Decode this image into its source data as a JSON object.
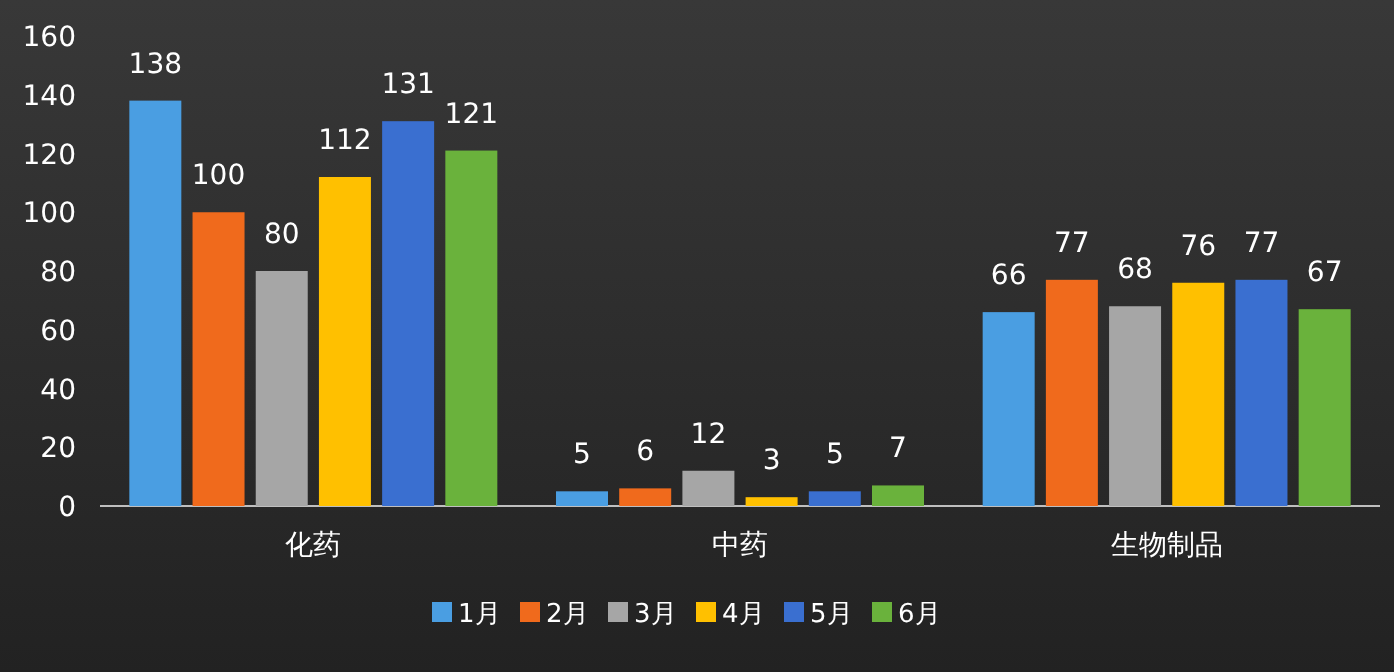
{
  "chart_data": {
    "type": "bar",
    "categories": [
      "化药",
      "中药",
      "生物制品"
    ],
    "series": [
      {
        "name": "1月",
        "color": "#4a9ee2",
        "values": [
          138,
          5,
          66
        ]
      },
      {
        "name": "2月",
        "color": "#f06a1c",
        "values": [
          100,
          6,
          77
        ]
      },
      {
        "name": "3月",
        "color": "#a6a6a6",
        "values": [
          80,
          12,
          68
        ]
      },
      {
        "name": "4月",
        "color": "#ffc000",
        "values": [
          112,
          3,
          76
        ]
      },
      {
        "name": "5月",
        "color": "#3a6fd0",
        "values": [
          131,
          5,
          77
        ]
      },
      {
        "name": "6月",
        "color": "#6ab23c",
        "values": [
          121,
          7,
          67
        ]
      }
    ],
    "ylim": [
      0,
      160
    ],
    "yticks": [
      0,
      20,
      40,
      60,
      80,
      100,
      120,
      140,
      160
    ],
    "data_labels": true,
    "grid": false,
    "legend": "bottom"
  }
}
